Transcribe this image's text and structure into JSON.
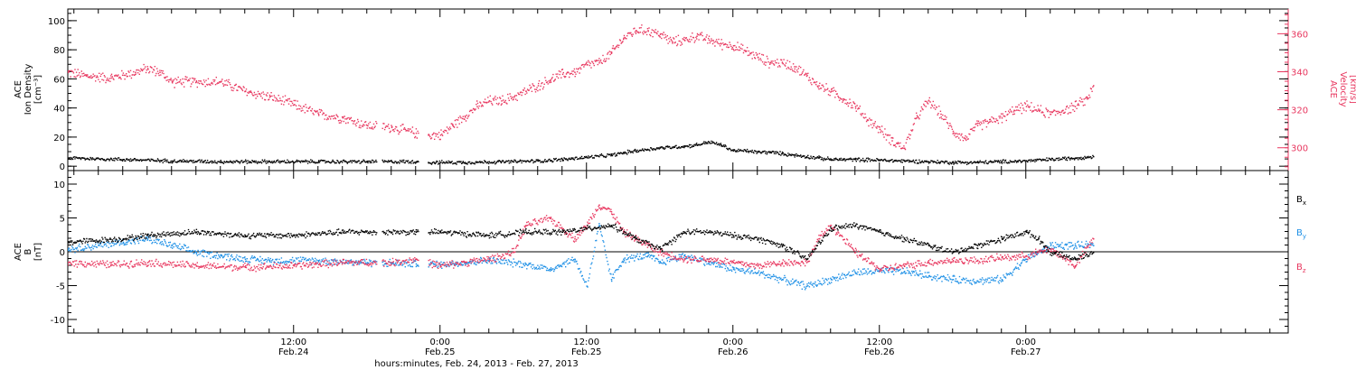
{
  "colors": {
    "black": "#000000",
    "red": "#e8375f",
    "blue": "#1e90e6",
    "axis": "#000000"
  },
  "footer": {
    "axis_title": "hours:minutes, Feb. 24, 2013 - Feb. 27, 2013"
  },
  "chart_data": [
    {
      "type": "scatter",
      "panel": "plasma",
      "xunit": "hours since Feb. 24 00:00",
      "xlim": [
        -6.5,
        93.5
      ],
      "x_ticks": [
        {
          "hour": 12,
          "time": "12:00",
          "date": "Feb.24"
        },
        {
          "hour": 24,
          "time": "0:00",
          "date": "Feb.25"
        },
        {
          "hour": 36,
          "time": "12:00",
          "date": "Feb.25"
        },
        {
          "hour": 48,
          "time": "0:00",
          "date": "Feb.26"
        },
        {
          "hour": 60,
          "time": "12:00",
          "date": "Feb.26"
        },
        {
          "hour": 72,
          "time": "0:00",
          "date": "Feb.27"
        }
      ],
      "left_axis": {
        "label_line1": "ACE",
        "label_line2": "Ion Density",
        "label_line3": "[cm⁻³]",
        "ylim": [
          -3,
          108
        ],
        "ticks": [
          "0",
          "20",
          "40",
          "60",
          "80",
          "100"
        ]
      },
      "right_axis": {
        "label_line1": "ACE",
        "label_line2": "Velocity",
        "label_line3": "[km/s]",
        "ylim": [
          288,
          373
        ],
        "ticks": [
          "300",
          "320",
          "340",
          "360"
        ]
      },
      "series": [
        {
          "key": "density",
          "axis": "left",
          "color": "#000000",
          "points": [
            [
              -6.5,
              6
            ],
            [
              -2,
              5
            ],
            [
              2,
              4
            ],
            [
              6,
              3.5
            ],
            [
              10,
              3.5
            ],
            [
              14,
              3.5
            ],
            [
              18,
              3.5
            ],
            [
              20,
              3.5
            ],
            [
              22,
              3.5
            ],
            [
              23,
              3
            ],
            [
              26,
              3
            ],
            [
              30,
              3.5
            ],
            [
              32,
              4
            ],
            [
              34,
              5
            ],
            [
              36,
              6.5
            ],
            [
              38,
              8
            ],
            [
              40,
              11
            ],
            [
              42,
              13
            ],
            [
              44,
              14
            ],
            [
              45,
              15
            ],
            [
              46,
              17
            ],
            [
              47,
              15
            ],
            [
              48,
              11
            ],
            [
              49,
              11
            ],
            [
              50,
              10
            ],
            [
              51,
              10
            ],
            [
              52,
              9
            ],
            [
              53,
              8
            ],
            [
              54,
              7
            ],
            [
              55,
              6
            ],
            [
              56,
              5
            ],
            [
              58,
              5
            ],
            [
              60,
              4.5
            ],
            [
              62,
              4
            ],
            [
              64,
              3.5
            ],
            [
              66,
              3
            ],
            [
              68,
              3
            ],
            [
              70,
              3.5
            ],
            [
              72,
              4
            ],
            [
              74,
              5
            ],
            [
              76,
              6
            ],
            [
              77.5,
              7
            ]
          ]
        },
        {
          "key": "velocity",
          "axis": "right",
          "color": "#e8375f",
          "points": [
            [
              -6.5,
              340
            ],
            [
              -5,
              338
            ],
            [
              -3,
              337
            ],
            [
              -1,
              340
            ],
            [
              0,
              342
            ],
            [
              1,
              340
            ],
            [
              2,
              335
            ],
            [
              4,
              335
            ],
            [
              6,
              335
            ],
            [
              8,
              330
            ],
            [
              10,
              327
            ],
            [
              12,
              323
            ],
            [
              14,
              318
            ],
            [
              16,
              316
            ],
            [
              18,
              312
            ],
            [
              20,
              311
            ],
            [
              22,
              308
            ],
            [
              23,
              307
            ],
            [
              24,
              307
            ],
            [
              25,
              312
            ],
            [
              26,
              317
            ],
            [
              27,
              322
            ],
            [
              28,
              325
            ],
            [
              29,
              325
            ],
            [
              30,
              327
            ],
            [
              31,
              330
            ],
            [
              32,
              333
            ],
            [
              33,
              336
            ],
            [
              34,
              339
            ],
            [
              35,
              340
            ],
            [
              36,
              344
            ],
            [
              37,
              345
            ],
            [
              38,
              350
            ],
            [
              39,
              358
            ],
            [
              40,
              362
            ],
            [
              41,
              362
            ],
            [
              42,
              360
            ],
            [
              43,
              356
            ],
            [
              44,
              357
            ],
            [
              45,
              359
            ],
            [
              46,
              357
            ],
            [
              47,
              355
            ],
            [
              48,
              354
            ],
            [
              49,
              351
            ],
            [
              50,
              348
            ],
            [
              51,
              345
            ],
            [
              52,
              345
            ],
            [
              53,
              343
            ],
            [
              54,
              338
            ],
            [
              55,
              333
            ],
            [
              56,
              330
            ],
            [
              57,
              326
            ],
            [
              58,
              322
            ],
            [
              59,
              315
            ],
            [
              60,
              310
            ],
            [
              61,
              304
            ],
            [
              62,
              300
            ],
            [
              63,
              316
            ],
            [
              64,
              325
            ],
            [
              65,
              318
            ],
            [
              66,
              309
            ],
            [
              67,
              305
            ],
            [
              68,
              312
            ],
            [
              69,
              314
            ],
            [
              70,
              316
            ],
            [
              71,
              320
            ],
            [
              72,
              322
            ],
            [
              73,
              320
            ],
            [
              74,
              318
            ],
            [
              75,
              320
            ],
            [
              76,
              322
            ],
            [
              77,
              326
            ],
            [
              77.5,
              333
            ]
          ]
        }
      ]
    },
    {
      "type": "scatter",
      "panel": "magnetic field",
      "xunit": "hours since Feb. 24 00:00",
      "xlim": [
        -6.5,
        93.5
      ],
      "left_axis": {
        "label_line1": "ACE",
        "label_line2": "B",
        "label_line3": "[nT]",
        "ylim": [
          -12,
          12
        ],
        "ticks": [
          "-10",
          "-5",
          "0",
          "5",
          "10"
        ]
      },
      "zero_line": true,
      "series": [
        {
          "key": "bx",
          "name_base": "B",
          "name_sub": "x",
          "color": "#000000",
          "points": [
            [
              -6.5,
              1.5
            ],
            [
              -2,
              2
            ],
            [
              0,
              2.5
            ],
            [
              4,
              3
            ],
            [
              8,
              2.5
            ],
            [
              12,
              2.5
            ],
            [
              16,
              3
            ],
            [
              20,
              3
            ],
            [
              22,
              3
            ],
            [
              24,
              3
            ],
            [
              28,
              2.5
            ],
            [
              31,
              3
            ],
            [
              34,
              3
            ],
            [
              36,
              3.5
            ],
            [
              38,
              4
            ],
            [
              40,
              2
            ],
            [
              42,
              0.5
            ],
            [
              44,
              3
            ],
            [
              46,
              3
            ],
            [
              48,
              2.5
            ],
            [
              50,
              2
            ],
            [
              52,
              1
            ],
            [
              54,
              -1
            ],
            [
              56,
              3.5
            ],
            [
              58,
              4
            ],
            [
              60,
              3
            ],
            [
              62,
              2
            ],
            [
              64,
              1
            ],
            [
              66,
              0
            ],
            [
              68,
              1
            ],
            [
              70,
              2
            ],
            [
              72,
              3
            ],
            [
              73,
              2
            ],
            [
              74,
              0
            ],
            [
              76,
              -1
            ],
            [
              77.5,
              0
            ]
          ]
        },
        {
          "key": "by",
          "name_base": "B",
          "name_sub": "y",
          "color": "#1e90e6",
          "points": [
            [
              -6.5,
              0.5
            ],
            [
              -4,
              1
            ],
            [
              -2,
              1.5
            ],
            [
              0,
              2
            ],
            [
              2,
              1
            ],
            [
              4,
              0
            ],
            [
              6,
              -0.5
            ],
            [
              8,
              -1
            ],
            [
              10,
              -1.2
            ],
            [
              14,
              -1.2
            ],
            [
              18,
              -1.5
            ],
            [
              22,
              -1.7
            ],
            [
              24,
              -1.8
            ],
            [
              26,
              -1.5
            ],
            [
              28,
              -1.2
            ],
            [
              31,
              -1.8
            ],
            [
              33,
              -2.5
            ],
            [
              35,
              -1
            ],
            [
              36,
              -5
            ],
            [
              37,
              4
            ],
            [
              38,
              -4
            ],
            [
              39,
              -1
            ],
            [
              41,
              -0.5
            ],
            [
              42,
              -1.5
            ],
            [
              44,
              -0.5
            ],
            [
              46,
              -1.5
            ],
            [
              48,
              -2.5
            ],
            [
              50,
              -3
            ],
            [
              52,
              -4
            ],
            [
              54,
              -5
            ],
            [
              56,
              -4
            ],
            [
              58,
              -3
            ],
            [
              60,
              -2.8
            ],
            [
              62,
              -2.8
            ],
            [
              64,
              -3.5
            ],
            [
              66,
              -4
            ],
            [
              68,
              -4.2
            ],
            [
              70,
              -4
            ],
            [
              72,
              -1
            ],
            [
              74,
              1
            ],
            [
              76,
              1
            ],
            [
              77.5,
              1
            ]
          ]
        },
        {
          "key": "bz",
          "name_base": "B",
          "name_sub": "z",
          "color": "#e8375f",
          "points": [
            [
              -6.5,
              -1.5
            ],
            [
              -3,
              -1.8
            ],
            [
              0,
              -1.5
            ],
            [
              4,
              -2
            ],
            [
              8,
              -2.2
            ],
            [
              12,
              -2
            ],
            [
              16,
              -1.5
            ],
            [
              20,
              -1.5
            ],
            [
              22,
              -1
            ],
            [
              24,
              -2
            ],
            [
              26,
              -1.5
            ],
            [
              28,
              -1
            ],
            [
              30,
              0
            ],
            [
              31,
              4
            ],
            [
              33,
              5
            ],
            [
              35,
              2
            ],
            [
              36,
              4
            ],
            [
              37,
              7
            ],
            [
              38,
              6
            ],
            [
              39,
              3
            ],
            [
              40,
              2
            ],
            [
              42,
              0
            ],
            [
              44,
              -1
            ],
            [
              46,
              -1
            ],
            [
              48,
              -1.5
            ],
            [
              50,
              -2
            ],
            [
              52,
              -1.5
            ],
            [
              54,
              -1.5
            ],
            [
              55,
              2
            ],
            [
              56,
              4
            ],
            [
              58,
              0
            ],
            [
              60,
              -2.5
            ],
            [
              62,
              -2
            ],
            [
              64,
              -1.5
            ],
            [
              66,
              -1.2
            ],
            [
              68,
              -1.2
            ],
            [
              70,
              -0.8
            ],
            [
              72,
              -0.5
            ],
            [
              74,
              0.5
            ],
            [
              76,
              -2
            ],
            [
              77.5,
              2
            ]
          ]
        }
      ]
    }
  ]
}
